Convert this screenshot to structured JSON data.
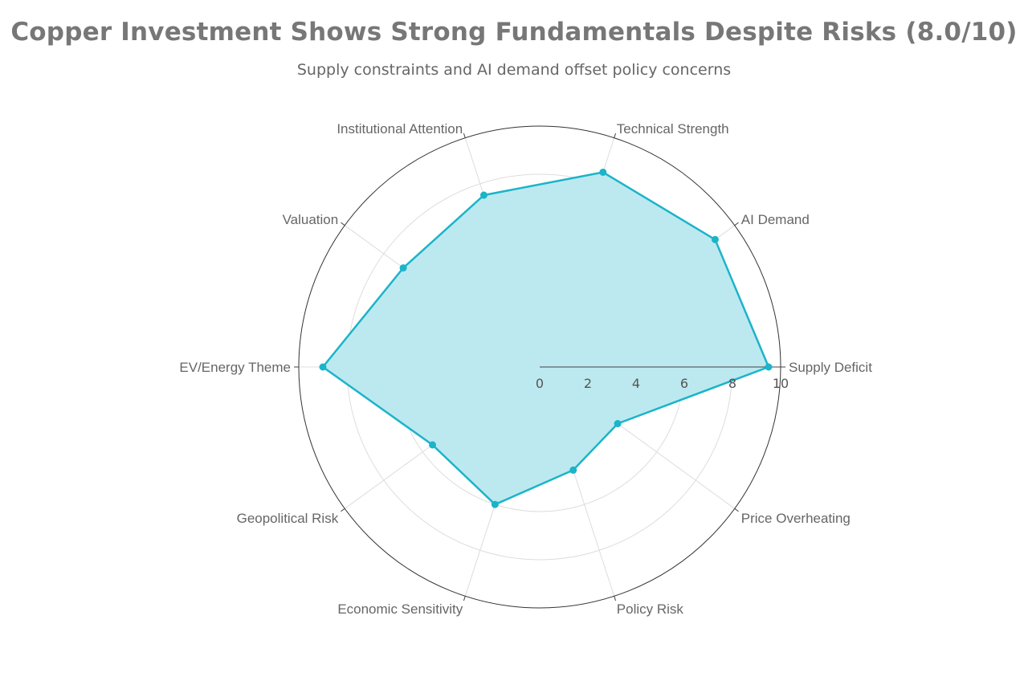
{
  "chart_data": {
    "type": "radar",
    "title": "Copper Investment Shows Strong Fundamentals Despite Risks (8.0/10)",
    "subtitle": "Supply constraints and AI demand offset policy concerns",
    "categories": [
      "Supply Deficit",
      "AI Demand",
      "Technical Strength",
      "Institutional Attention",
      "Valuation",
      "EV/Energy Theme",
      "Geopolitical Risk",
      "Economic Sensitivity",
      "Policy Risk",
      "Price Overheating"
    ],
    "values": [
      9.5,
      9,
      8.5,
      7.5,
      7,
      9,
      5.5,
      6,
      4.5,
      4
    ],
    "radial_range": [
      0,
      10
    ],
    "radial_ticks": [
      0,
      2,
      4,
      6,
      8,
      10
    ],
    "grid": true,
    "legend": "none",
    "colors": {
      "line": "#1bb4c9",
      "fill": "#bce9ef",
      "grid": "#dddddd",
      "outer_ring": "#333333",
      "text": "#666666"
    }
  }
}
